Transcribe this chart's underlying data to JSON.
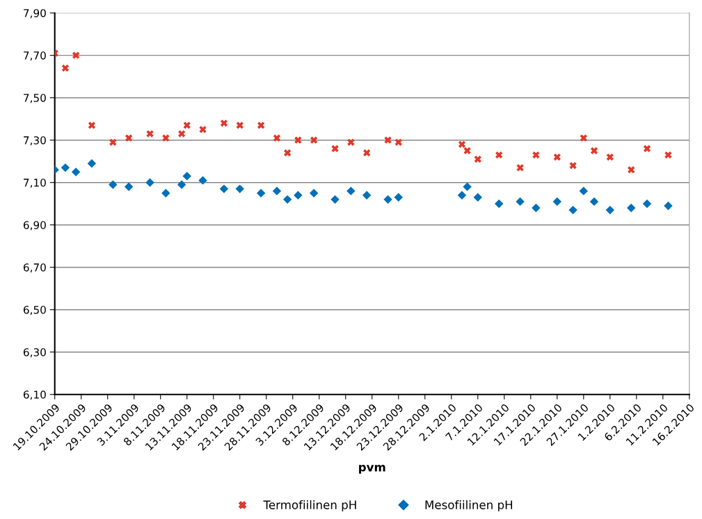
{
  "chart_data": {
    "type": "scatter",
    "xlabel": "pvm",
    "x": [
      "2009-10-19",
      "2009-10-21",
      "2009-10-23",
      "2009-10-26",
      "2009-10-30",
      "2009-11-02",
      "2009-11-06",
      "2009-11-09",
      "2009-11-12",
      "2009-11-13",
      "2009-11-16",
      "2009-11-20",
      "2009-11-23",
      "2009-11-27",
      "2009-11-30",
      "2009-12-02",
      "2009-12-04",
      "2009-12-07",
      "2009-12-11",
      "2009-12-14",
      "2009-12-17",
      "2009-12-21",
      "2009-12-23",
      "2010-01-04",
      "2010-01-05",
      "2010-01-07",
      "2010-01-11",
      "2010-01-15",
      "2010-01-18",
      "2010-01-22",
      "2010-01-25",
      "2010-01-27",
      "2010-01-29",
      "2010-02-01",
      "2010-02-05",
      "2010-02-08",
      "2010-02-12"
    ],
    "series": [
      {
        "name": "Termofiilinen pH",
        "color": "#e0392b",
        "marker": "cross",
        "values": [
          7.71,
          7.64,
          7.7,
          7.37,
          7.29,
          7.31,
          7.33,
          7.31,
          7.33,
          7.37,
          7.35,
          7.38,
          7.37,
          7.37,
          7.31,
          7.24,
          7.3,
          7.3,
          7.26,
          7.29,
          7.24,
          7.3,
          7.29,
          7.28,
          7.25,
          7.21,
          7.23,
          7.17,
          7.23,
          7.22,
          7.18,
          7.31,
          7.25,
          7.22,
          7.16,
          7.26,
          7.23
        ]
      },
      {
        "name": "Mesofiilinen pH",
        "color": "#0070b8",
        "marker": "diamond",
        "values": [
          7.16,
          7.17,
          7.15,
          7.19,
          7.09,
          7.08,
          7.1,
          7.05,
          7.09,
          7.13,
          7.11,
          7.07,
          7.07,
          7.05,
          7.06,
          7.02,
          7.04,
          7.05,
          7.02,
          7.06,
          7.04,
          7.02,
          7.03,
          7.04,
          7.08,
          7.03,
          7.0,
          7.01,
          6.98,
          7.01,
          6.97,
          7.06,
          7.01,
          6.97,
          6.98,
          7.0,
          6.99
        ]
      }
    ],
    "xlim": [
      "2009-10-19",
      "2010-02-16"
    ],
    "xticks": [
      {
        "value": "2009-10-19",
        "label": "19.10.2009"
      },
      {
        "value": "2009-10-24",
        "label": "24.10.2009"
      },
      {
        "value": "2009-10-29",
        "label": "29.10.2009"
      },
      {
        "value": "2009-11-03",
        "label": "3.11.2009"
      },
      {
        "value": "2009-11-08",
        "label": "8.11.2009"
      },
      {
        "value": "2009-11-13",
        "label": "13.11.2009"
      },
      {
        "value": "2009-11-18",
        "label": "18.11.2009"
      },
      {
        "value": "2009-11-23",
        "label": "23.11.2009"
      },
      {
        "value": "2009-11-28",
        "label": "28.11.2009"
      },
      {
        "value": "2009-12-03",
        "label": "3.12.2009"
      },
      {
        "value": "2009-12-08",
        "label": "8.12.2009"
      },
      {
        "value": "2009-12-13",
        "label": "13.12.2009"
      },
      {
        "value": "2009-12-18",
        "label": "18.12.2009"
      },
      {
        "value": "2009-12-23",
        "label": "23.12.2009"
      },
      {
        "value": "2009-12-28",
        "label": "28.12.2009"
      },
      {
        "value": "2010-01-02",
        "label": "2.1.2010"
      },
      {
        "value": "2010-01-07",
        "label": "7.1.2010"
      },
      {
        "value": "2010-01-12",
        "label": "12.1.2010"
      },
      {
        "value": "2010-01-17",
        "label": "17.1.2010"
      },
      {
        "value": "2010-01-22",
        "label": "22.1.2010"
      },
      {
        "value": "2010-01-27",
        "label": "27.1.2010"
      },
      {
        "value": "2010-02-01",
        "label": "1.2.2010"
      },
      {
        "value": "2010-02-06",
        "label": "6.2.2010"
      },
      {
        "value": "2010-02-11",
        "label": "11.2.2010"
      },
      {
        "value": "2010-02-16",
        "label": "16.2.2010"
      }
    ],
    "ylim": [
      6.1,
      7.9
    ],
    "yticks": [
      {
        "value": 6.1,
        "label": "6,10"
      },
      {
        "value": 6.3,
        "label": "6,30"
      },
      {
        "value": 6.5,
        "label": "6,50"
      },
      {
        "value": 6.7,
        "label": "6,70"
      },
      {
        "value": 6.9,
        "label": "6,90"
      },
      {
        "value": 7.1,
        "label": "7,10"
      },
      {
        "value": 7.3,
        "label": "7,30"
      },
      {
        "value": 7.5,
        "label": "7,50"
      },
      {
        "value": 7.7,
        "label": "7,70"
      },
      {
        "value": 7.9,
        "label": "7,90"
      }
    ],
    "grid": "y",
    "legend": "bottom"
  }
}
